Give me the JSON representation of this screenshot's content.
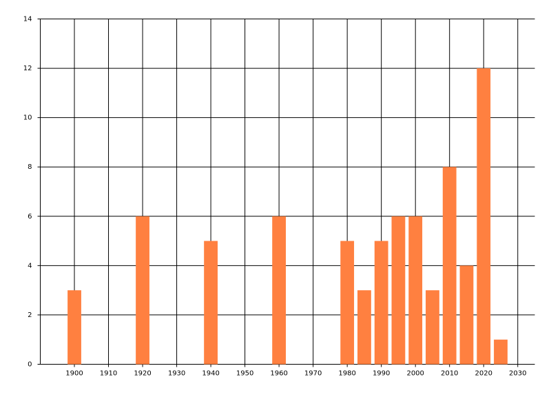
{
  "chart_data": {
    "type": "bar",
    "x": [
      1900,
      1920,
      1940,
      1960,
      1980,
      1985,
      1990,
      1995,
      2000,
      2005,
      2010,
      2015,
      2020,
      2025
    ],
    "values": [
      3,
      6,
      5,
      6,
      5,
      3,
      5,
      6,
      6,
      3,
      8,
      4,
      12,
      1
    ],
    "color": "#ff8040",
    "xlim": [
      1890,
      2035
    ],
    "xticks": [
      1900,
      1910,
      1920,
      1930,
      1940,
      1950,
      1960,
      1970,
      1980,
      1990,
      2000,
      2010,
      2020,
      2030
    ],
    "ylim": [
      0,
      14
    ],
    "yticks": [
      0,
      2,
      4,
      6,
      8,
      10,
      12,
      14
    ],
    "grid": true
  }
}
